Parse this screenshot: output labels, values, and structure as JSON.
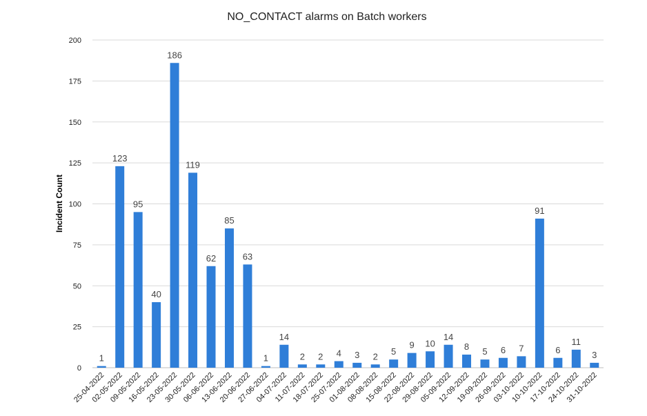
{
  "chart_data": {
    "type": "bar",
    "title": "NO_CONTACT alarms on Batch workers",
    "xlabel": "",
    "ylabel": "Incident Count",
    "ylim": [
      0,
      200
    ],
    "yticks": [
      0,
      25,
      50,
      75,
      100,
      125,
      150,
      175,
      200
    ],
    "grid": true,
    "legend": "none",
    "bar_color": "#2f7ed8",
    "categories": [
      "25-04-2022",
      "02-05-2022",
      "09-05-2022",
      "16-05-2022",
      "23-05-2022",
      "30-05-2022",
      "06-06-2022",
      "13-06-2022",
      "20-06-2022",
      "27-06-2022",
      "04-07-2022",
      "11-07-2022",
      "18-07-2022",
      "25-07-2022",
      "01-08-2022",
      "08-08-2022",
      "15-08-2022",
      "22-08-2022",
      "29-08-2022",
      "05-09-2022",
      "12-09-2022",
      "19-09-2022",
      "26-09-2022",
      "03-10-2022",
      "10-10-2022",
      "17-10-2022",
      "24-10-2022",
      "31-10-2022"
    ],
    "values": [
      1,
      123,
      95,
      40,
      186,
      119,
      62,
      85,
      63,
      1,
      14,
      2,
      2,
      4,
      3,
      2,
      5,
      9,
      10,
      14,
      8,
      5,
      6,
      7,
      91,
      6,
      11,
      3
    ]
  }
}
